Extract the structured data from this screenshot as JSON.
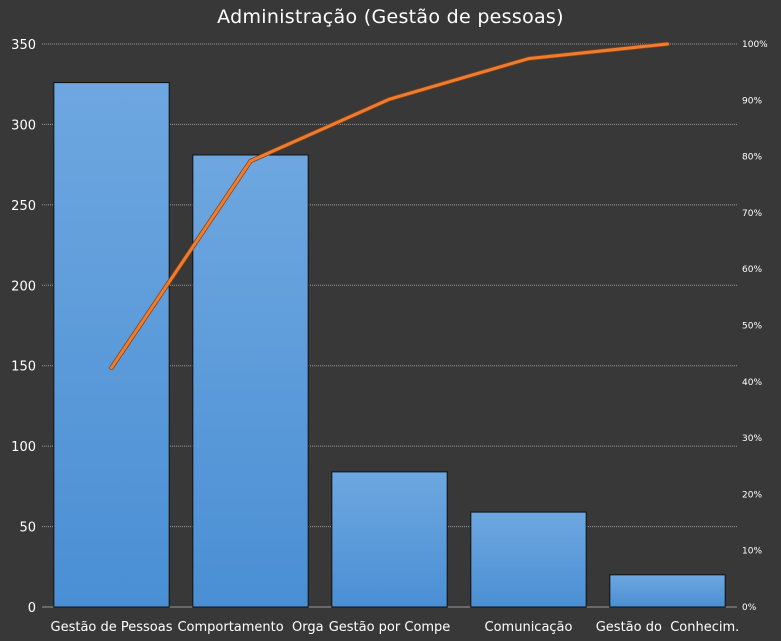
{
  "chart_data": {
    "type": "bar",
    "title": "Administração (Gestão de pessoas)",
    "categories": [
      "Gestão de Pessoas",
      "Comportamento  Orga",
      "Gestão por Compe",
      "Comunicação",
      "Gestão do  Conhecim."
    ],
    "series": [
      {
        "type": "bar",
        "axis": "left",
        "values": [
          326,
          281,
          84,
          59,
          20
        ]
      },
      {
        "type": "line",
        "axis": "right",
        "values": [
          42.5,
          79.2,
          90.2,
          97.4,
          100
        ]
      }
    ],
    "ylim": [
      0,
      350
    ],
    "yticks": [
      "0",
      "50",
      "100",
      "150",
      "200",
      "250",
      "300",
      "350"
    ],
    "ylim_right": [
      0,
      100
    ],
    "yticks_right": [
      "0%",
      "10%",
      "20%",
      "30%",
      "40%",
      "50%",
      "60%",
      "70%",
      "80%",
      "90%",
      "100%"
    ],
    "grid": true,
    "colors": {
      "bar": "#4a8fd4",
      "bar_top": "#6ea7e0",
      "line": "#ed7d31",
      "background": "#383838",
      "grid": "#9a9a9a"
    }
  }
}
